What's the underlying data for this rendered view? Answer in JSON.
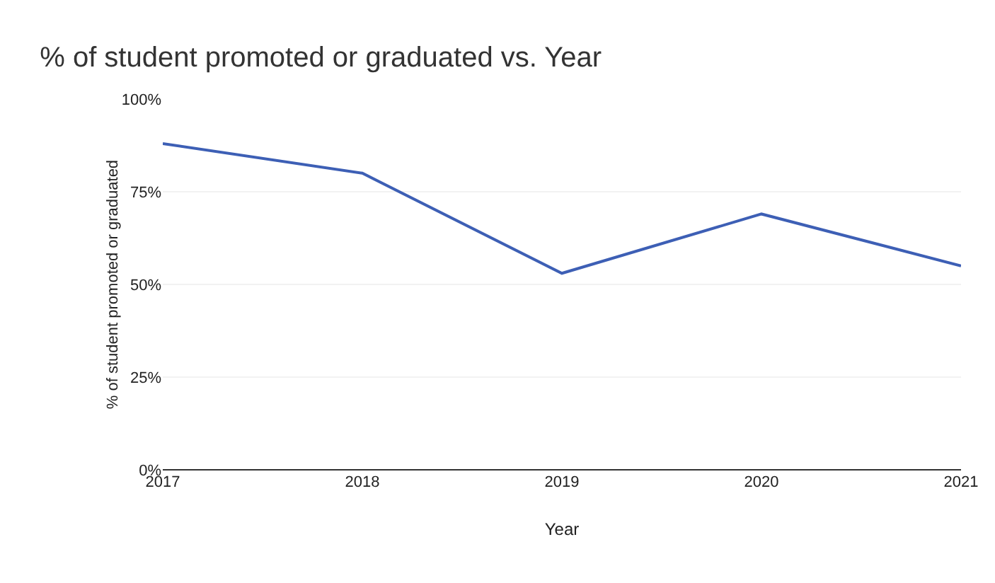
{
  "chart_data": {
    "type": "line",
    "title": "% of student promoted or graduated vs. Year",
    "xlabel": "Year",
    "ylabel": "% of student promoted or graduated",
    "x": [
      2017,
      2018,
      2019,
      2020,
      2021
    ],
    "series": [
      {
        "color": "#3d5fb5",
        "values": [
          88,
          80,
          53,
          69,
          55
        ]
      }
    ],
    "xlim": [
      2017,
      2021
    ],
    "xticks": [
      2017,
      2018,
      2019,
      2020,
      2021
    ],
    "ylim": [
      0,
      100
    ],
    "yticks": [
      {
        "value": 0,
        "label": "0%"
      },
      {
        "value": 25,
        "label": "25%"
      },
      {
        "value": 50,
        "label": "50%"
      },
      {
        "value": 75,
        "label": "75%"
      },
      {
        "value": 100,
        "label": "100%"
      }
    ],
    "grid": "y",
    "marker": "none",
    "line_style": "solid"
  }
}
